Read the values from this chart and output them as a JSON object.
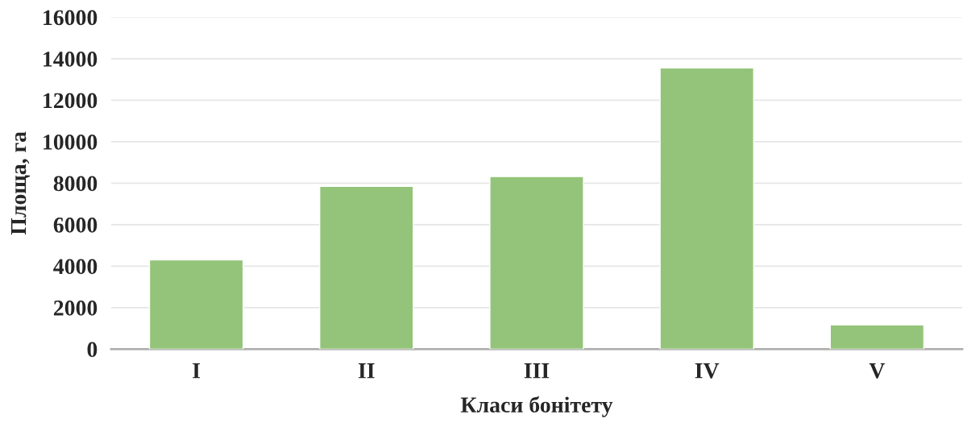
{
  "chart_data": {
    "type": "bar",
    "xlabel": "Класи бонітету",
    "ylabel": "Площа, га",
    "categories": [
      "I",
      "II",
      "III",
      "IV",
      "V"
    ],
    "values": [
      4300,
      7850,
      8320,
      13560,
      1170
    ],
    "color": "#94c47a",
    "ylim": [
      0,
      16000
    ],
    "yticks": [
      0,
      2000,
      4000,
      6000,
      8000,
      10000,
      12000,
      14000,
      16000
    ],
    "grid": "y",
    "legend": false
  }
}
